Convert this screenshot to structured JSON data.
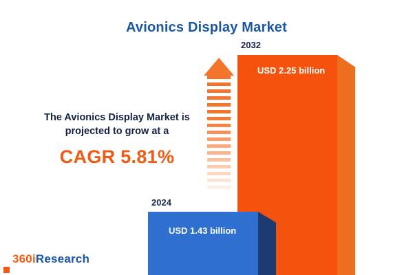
{
  "title": "Avionics Display Market",
  "description": {
    "line1": "The Avionics Display Market is",
    "line2": "projected to grow at a",
    "cagr": "CAGR 5.81%"
  },
  "bars": {
    "b2024": {
      "year": "2024",
      "value": "USD 1.43 billion"
    },
    "b2032": {
      "year": "2032",
      "value": "USD 2.25 billion"
    }
  },
  "logo": {
    "part1": "360i",
    "part2": "Research"
  },
  "colors": {
    "title_blue": "#1956a4",
    "accent_orange": "#f05a14",
    "bar_blue": "#2e6fd0",
    "bar_blue_side": "#1d3a72",
    "bar_orange": "#f4520d",
    "bar_orange_side": "#ee6e1f",
    "label_navy": "#17294e"
  },
  "chart_data": {
    "type": "bar",
    "title": "Avionics Display Market",
    "categories": [
      "2024",
      "2032"
    ],
    "values": [
      1.43,
      2.25
    ],
    "unit": "USD billion",
    "data_labels": [
      "USD 1.43 billion",
      "USD 2.25 billion"
    ],
    "annotation": "The Avionics Display Market is projected to grow at a CAGR 5.81%",
    "cagr": "5.81%",
    "xlabel": "",
    "ylabel": "",
    "legend": false,
    "grid": false
  }
}
